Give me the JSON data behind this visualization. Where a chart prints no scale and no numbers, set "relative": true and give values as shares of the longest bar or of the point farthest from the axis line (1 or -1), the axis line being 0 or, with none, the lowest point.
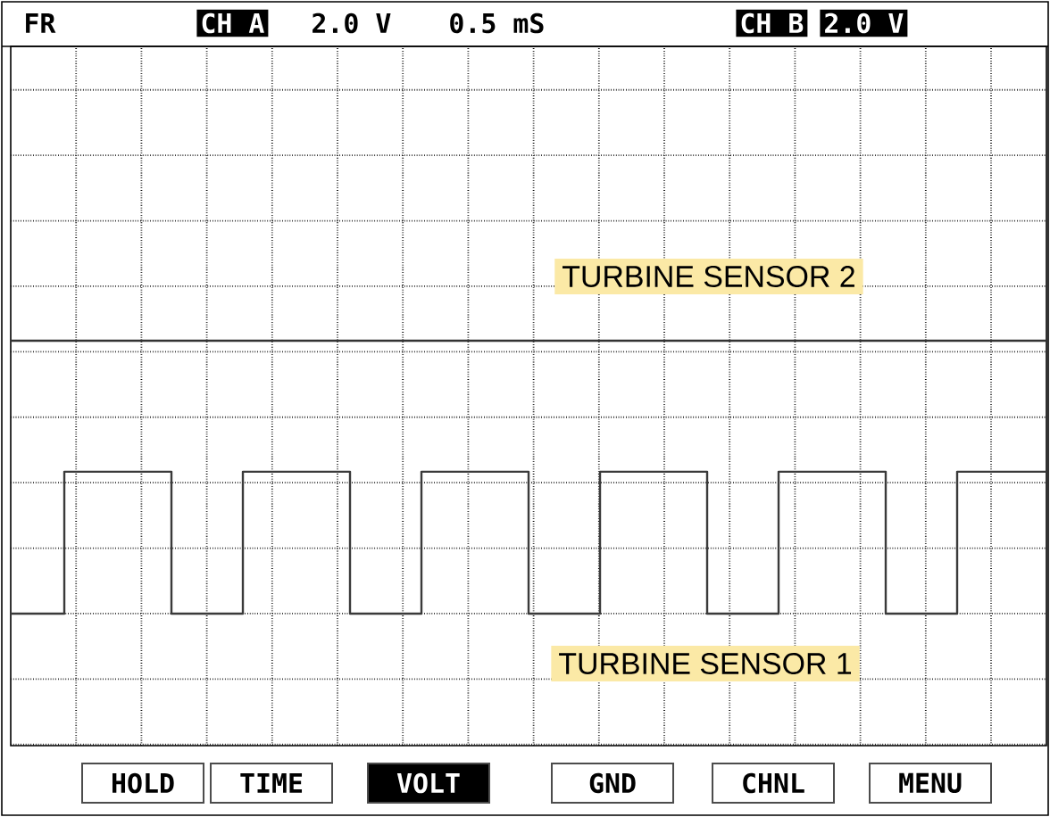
{
  "chart_data": {
    "type": "step",
    "relative": true,
    "grid": true,
    "categories": [
      null,
      null,
      null,
      null,
      null,
      null,
      null,
      null,
      null,
      null,
      null,
      null,
      null,
      null,
      null,
      null,
      null,
      null,
      null,
      null,
      null,
      null,
      null,
      null,
      null,
      null,
      null,
      null,
      null,
      null,
      null,
      null,
      null,
      null,
      null,
      null,
      null,
      null,
      null,
      null,
      null,
      null,
      null,
      null,
      null,
      null,
      null,
      null,
      null,
      null,
      null,
      null,
      null,
      null,
      null,
      null,
      null,
      null,
      null
    ],
    "series": [
      {
        "name": "TURBINE SENSOR 2",
        "color": "#333333",
        "values": [
          1,
          1,
          1,
          1,
          1,
          1,
          1,
          1,
          1,
          1,
          1,
          1,
          1,
          1,
          1,
          1,
          1,
          1,
          1,
          1,
          1,
          1,
          1,
          1,
          1,
          1,
          1,
          1,
          1,
          1,
          1,
          1,
          1,
          1,
          1,
          1,
          1,
          1,
          1,
          1,
          1,
          1,
          1,
          1,
          1,
          1,
          1,
          1,
          1,
          1,
          1,
          1,
          1,
          1,
          1,
          1,
          1,
          1,
          1
        ]
      },
      {
        "name": "TURBINE SENSOR 1",
        "color": "#3a3a3a",
        "values": [
          0,
          0,
          0,
          0.52,
          0.52,
          0.52,
          0.52,
          0.52,
          0.52,
          0,
          0,
          0,
          0,
          0.52,
          0.52,
          0.52,
          0.52,
          0.52,
          0.52,
          0,
          0,
          0,
          0,
          0.52,
          0.52,
          0.52,
          0.52,
          0.52,
          0.52,
          0,
          0,
          0,
          0,
          0.52,
          0.52,
          0.52,
          0.52,
          0.52,
          0.52,
          0,
          0,
          0,
          0,
          0.52,
          0.52,
          0.52,
          0.52,
          0.52,
          0.52,
          0,
          0,
          0,
          0,
          0.52,
          0.52,
          0.52,
          0.52,
          0.52,
          0.52
        ]
      }
    ],
    "annotations": [
      "FR",
      "CH A",
      "2.0 V",
      "0.5 mS",
      "CH B",
      "2.0 V",
      "HOLD",
      "TIME",
      "VOLT",
      "GND",
      "CHNL",
      "MENU"
    ]
  }
}
